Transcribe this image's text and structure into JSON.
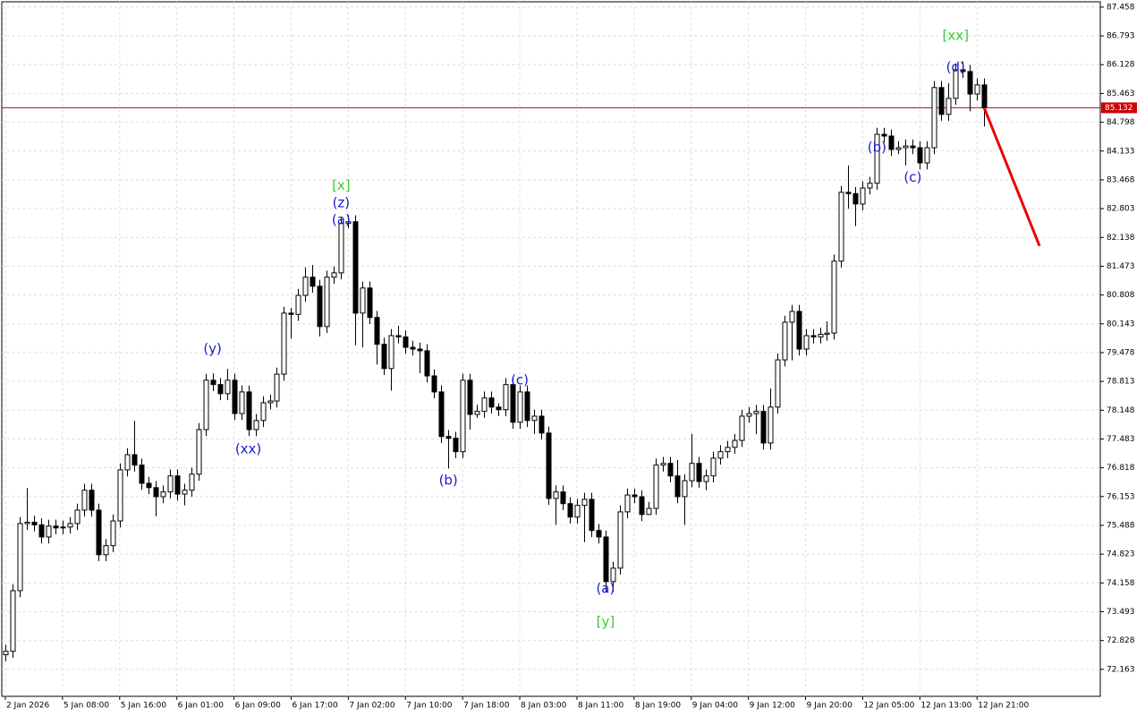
{
  "chart_data": {
    "type": "candlestick",
    "categories": [
      "2 Jan 2026",
      null,
      null,
      null,
      null,
      null,
      null,
      null,
      "5 Jan 08:00",
      null,
      null,
      null,
      null,
      null,
      null,
      null,
      "5 Jan 16:00",
      null,
      null,
      null,
      null,
      null,
      null,
      null,
      "6 Jan 01:00",
      null,
      null,
      null,
      null,
      null,
      null,
      null,
      "6 Jan 09:00",
      null,
      null,
      null,
      null,
      null,
      null,
      null,
      "6 Jan 17:00",
      null,
      null,
      null,
      null,
      null,
      null,
      null,
      "7 Jan 02:00",
      null,
      null,
      null,
      null,
      null,
      null,
      null,
      "7 Jan 10:00",
      null,
      null,
      null,
      null,
      null,
      null,
      null,
      "7 Jan 18:00",
      null,
      null,
      null,
      null,
      null,
      null,
      null,
      "8 Jan 03:00",
      null,
      null,
      null,
      null,
      null,
      null,
      null,
      "8 Jan 11:00",
      null,
      null,
      null,
      null,
      null,
      null,
      null,
      "8 Jan 19:00",
      null,
      null,
      null,
      null,
      null,
      null,
      null,
      "9 Jan 04:00",
      null,
      null,
      null,
      null,
      null,
      null,
      null,
      "9 Jan 12:00",
      null,
      null,
      null,
      null,
      null,
      null,
      null,
      "9 Jan 20:00",
      null,
      null,
      null,
      null,
      null,
      null,
      null,
      "12 Jan 05:00",
      null,
      null,
      null,
      null,
      null,
      null,
      null,
      "12 Jan 13:00",
      null,
      null,
      null,
      null,
      null,
      null,
      null,
      "12 Jan 21:00",
      null
    ],
    "open": [
      72.5,
      72.58,
      73.98,
      75.53,
      75.56,
      75.5,
      75.22,
      75.47,
      75.43,
      75.45,
      75.53,
      75.84,
      76.3,
      75.84,
      74.81,
      75.02,
      75.59,
      76.77,
      77.12,
      76.88,
      76.46,
      76.36,
      76.15,
      76.26,
      76.63,
      76.21,
      76.3,
      76.67,
      77.7,
      78.84,
      78.74,
      78.53,
      78.84,
      78.07,
      78.57,
      77.7,
      77.91,
      78.32,
      78.36,
      78.98,
      80.39,
      80.36,
      80.8,
      81.22,
      81.01,
      80.08,
      81.22,
      81.32,
      82.46,
      82.5,
      80.39,
      80.97,
      80.29,
      79.67,
      79.11,
      79.87,
      79.84,
      79.6,
      79.56,
      79.52,
      78.94,
      78.57,
      77.54,
      77.5,
      77.19,
      78.84,
      78.05,
      78.12,
      78.43,
      78.22,
      78.16,
      78.74,
      77.87,
      78.57,
      77.91,
      78.01,
      77.62,
      76.11,
      76.26,
      75.99,
      75.68,
      75.95,
      76.09,
      75.37,
      75.22,
      74.19,
      74.5,
      75.8,
      76.19,
      76.15,
      75.74,
      75.88,
      76.88,
      76.92,
      76.63,
      76.15,
      76.52,
      76.92,
      76.5,
      76.63,
      77.04,
      77.19,
      77.29,
      77.45,
      78.01,
      78.07,
      78.12,
      77.39,
      78.22,
      79.31,
      80.18,
      80.43,
      79.56,
      79.87,
      79.84,
      79.9,
      79.93,
      81.59,
      83.18,
      83.15,
      82.91,
      83.28,
      83.39,
      84.52,
      84.48,
      84.17,
      84.21,
      84.25,
      84.21,
      83.86,
      84.21,
      85.6,
      84.98,
      85.35,
      86.01,
      85.97,
      85.45,
      85.66
    ],
    "high": [
      72.73,
      74.13,
      75.68,
      76.35,
      75.71,
      75.65,
      75.62,
      75.62,
      75.6,
      75.68,
      75.99,
      76.45,
      76.45,
      75.99,
      75.17,
      75.74,
      76.92,
      77.27,
      77.9,
      77.03,
      76.61,
      76.51,
      76.41,
      76.78,
      76.78,
      76.45,
      76.82,
      77.85,
      78.99,
      79.0,
      78.89,
      79.1,
      78.99,
      78.72,
      78.72,
      78.06,
      78.47,
      78.51,
      79.13,
      80.54,
      80.51,
      80.95,
      81.45,
      81.5,
      81.16,
      81.37,
      81.47,
      82.61,
      82.65,
      82.65,
      81.12,
      81.12,
      80.44,
      79.82,
      80.02,
      80.1,
      79.99,
      79.75,
      79.71,
      79.67,
      79.09,
      78.72,
      77.69,
      77.65,
      78.99,
      78.99,
      78.27,
      78.58,
      78.58,
      78.31,
      78.89,
      78.89,
      78.72,
      78.72,
      78.16,
      78.16,
      77.77,
      76.41,
      76.41,
      76.14,
      76.1,
      76.24,
      76.24,
      75.52,
      75.37,
      74.65,
      75.95,
      76.34,
      76.34,
      76.3,
      76.03,
      77.03,
      77.07,
      77.07,
      77.0,
      76.67,
      77.6,
      77.07,
      76.78,
      77.19,
      77.34,
      77.44,
      77.6,
      78.16,
      78.22,
      78.27,
      78.27,
      78.65,
      79.46,
      80.33,
      80.58,
      80.58,
      80.02,
      80.02,
      80.05,
      80.2,
      81.74,
      83.33,
      83.8,
      83.3,
      83.43,
      83.54,
      84.67,
      84.67,
      84.63,
      84.36,
      84.4,
      84.4,
      84.36,
      84.36,
      85.75,
      85.75,
      85.7,
      86.16,
      86.2,
      86.12,
      85.81,
      85.81
    ],
    "low": [
      72.35,
      72.43,
      73.83,
      75.38,
      75.35,
      75.07,
      75.07,
      75.28,
      75.28,
      75.3,
      75.38,
      75.69,
      75.69,
      74.66,
      74.66,
      74.87,
      75.44,
      76.62,
      76.73,
      76.31,
      76.21,
      75.7,
      76.0,
      76.11,
      76.06,
      75.95,
      76.15,
      76.52,
      77.55,
      78.59,
      78.38,
      78.38,
      77.92,
      77.92,
      77.55,
      77.55,
      77.76,
      78.17,
      78.21,
      78.83,
      79.8,
      80.21,
      80.65,
      80.86,
      79.85,
      79.93,
      81.07,
      81.17,
      82.35,
      79.65,
      79.6,
      80.14,
      79.2,
      78.96,
      78.6,
      79.69,
      79.45,
      79.41,
      79.0,
      78.79,
      78.42,
      77.39,
      76.8,
      77.04,
      77.04,
      77.7,
      77.97,
      77.97,
      78.07,
      78.01,
      78.01,
      77.72,
      77.72,
      77.76,
      77.6,
      77.47,
      75.96,
      75.5,
      75.84,
      75.53,
      75.53,
      75.1,
      75.22,
      75.07,
      73.95,
      73.95,
      74.35,
      75.65,
      76.0,
      75.59,
      75.73,
      75.73,
      76.73,
      76.48,
      76.0,
      75.5,
      76.37,
      76.35,
      76.3,
      76.48,
      76.89,
      77.04,
      77.14,
      77.3,
      77.86,
      77.6,
      77.24,
      77.24,
      78.07,
      79.16,
      79.3,
      79.41,
      79.41,
      79.69,
      79.69,
      79.75,
      79.78,
      81.44,
      82.8,
      82.4,
      82.76,
      83.13,
      83.24,
      84.33,
      84.02,
      84.06,
      83.8,
      84.06,
      83.71,
      83.71,
      84.06,
      84.83,
      84.83,
      85.2,
      85.82,
      85.05,
      85.3,
      84.7
    ],
    "close": [
      72.58,
      73.98,
      75.53,
      75.56,
      75.5,
      75.22,
      75.47,
      75.43,
      75.45,
      75.53,
      75.84,
      76.3,
      75.84,
      74.81,
      75.02,
      75.59,
      76.77,
      77.12,
      76.88,
      76.46,
      76.36,
      76.15,
      76.26,
      76.63,
      76.21,
      76.3,
      76.67,
      77.7,
      78.84,
      78.74,
      78.53,
      78.84,
      78.07,
      78.57,
      77.7,
      77.91,
      78.32,
      78.36,
      78.98,
      80.39,
      80.36,
      80.8,
      81.22,
      81.01,
      80.08,
      81.22,
      81.32,
      82.46,
      82.5,
      80.39,
      80.97,
      80.29,
      79.67,
      79.11,
      79.87,
      79.84,
      79.6,
      79.56,
      79.52,
      78.94,
      78.57,
      77.54,
      77.5,
      77.19,
      78.84,
      78.05,
      78.12,
      78.43,
      78.22,
      78.16,
      78.74,
      77.87,
      78.57,
      77.91,
      78.01,
      77.62,
      76.11,
      76.26,
      75.99,
      75.68,
      75.95,
      76.09,
      75.37,
      75.22,
      74.19,
      74.5,
      75.8,
      76.19,
      76.15,
      75.74,
      75.88,
      76.88,
      76.92,
      76.63,
      76.15,
      76.52,
      76.92,
      76.5,
      76.63,
      77.04,
      77.19,
      77.29,
      77.45,
      78.01,
      78.07,
      78.12,
      77.39,
      78.22,
      79.31,
      80.18,
      80.43,
      79.56,
      79.87,
      79.84,
      79.9,
      79.93,
      81.59,
      83.18,
      83.15,
      82.91,
      83.28,
      83.39,
      84.52,
      84.48,
      84.17,
      84.21,
      84.25,
      84.21,
      83.86,
      84.21,
      85.6,
      84.98,
      85.35,
      86.01,
      85.97,
      85.45,
      85.66,
      85.132
    ],
    "up_color": "#ffffff",
    "down_color": "#000000",
    "outline_color": "#000000",
    "xlim": [
      -0.5,
      153.25
    ],
    "ylim": [
      71.54,
      87.58
    ],
    "yticks": [
      87.458,
      86.793,
      86.128,
      85.463,
      84.798,
      84.133,
      83.468,
      82.803,
      82.138,
      81.473,
      80.808,
      80.143,
      79.478,
      78.813,
      78.148,
      77.483,
      76.818,
      76.153,
      75.488,
      74.823,
      74.158,
      73.493,
      72.828,
      72.163
    ],
    "grid": true,
    "current_price": {
      "value": 85.132,
      "color": "#cc0000"
    },
    "forecast": {
      "x": [
        137,
        144.75
      ],
      "values": [
        85.132,
        81.94
      ],
      "color": "#ee0000"
    },
    "annotations": [
      {
        "text": "[xx]",
        "index": 133,
        "price": 86.79,
        "color": "#33cc33"
      },
      {
        "text": "(d)",
        "index": 133,
        "price": 86.06,
        "color": "#1a1acd"
      },
      {
        "text": "(b)",
        "index": 122,
        "price": 84.21,
        "color": "#1a1acd"
      },
      {
        "text": "(c)",
        "index": 127,
        "price": 83.52,
        "color": "#1a1acd"
      },
      {
        "text": "[x]",
        "index": 47,
        "price": 83.33,
        "color": "#33cc33"
      },
      {
        "text": "(z)",
        "index": 47,
        "price": 82.93,
        "color": "#1a1acd"
      },
      {
        "text": "(a)",
        "index": 47,
        "price": 82.54,
        "color": "#1a1acd"
      },
      {
        "text": "(y)",
        "index": 29,
        "price": 79.56,
        "color": "#1a1acd"
      },
      {
        "text": "(xx)",
        "index": 34,
        "price": 77.25,
        "color": "#1a1acd"
      },
      {
        "text": "(b)",
        "index": 62,
        "price": 76.52,
        "color": "#1a1acd"
      },
      {
        "text": "(c)",
        "index": 72,
        "price": 78.84,
        "color": "#1a1acd"
      },
      {
        "text": "(a)",
        "index": 84,
        "price": 74.02,
        "color": "#1a1acd"
      },
      {
        "text": "[y]",
        "index": 84,
        "price": 73.26,
        "color": "#33cc33"
      }
    ]
  }
}
